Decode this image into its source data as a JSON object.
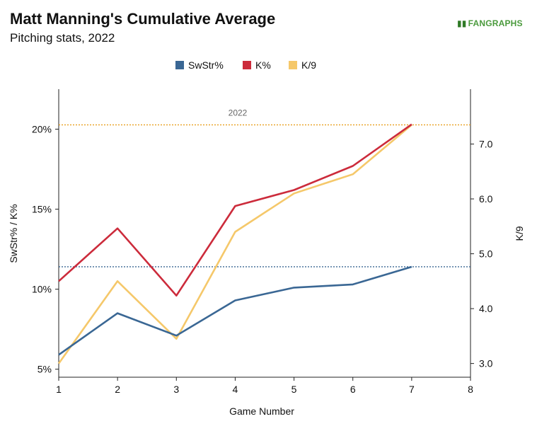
{
  "header": {
    "title": "Matt Manning's Cumulative Average",
    "subtitle": "Pitching stats, 2022",
    "logo": "FANGRAPHS"
  },
  "colors": {
    "swstr": "#3a6794",
    "kpct": "#cc2b3b",
    "k9": "#f5c86a",
    "ref_swstr": "#3a6794",
    "ref_k9": "#e8a020"
  },
  "chart_data": {
    "type": "line",
    "title": "Matt Manning's Cumulative Average",
    "subtitle": "Pitching stats, 2022",
    "xlabel": "Game Number",
    "ylabel_left": "SwStr% / K%",
    "ylabel_right": "K/9",
    "x": [
      1,
      2,
      3,
      4,
      5,
      6,
      7
    ],
    "xlim": [
      1,
      8
    ],
    "x_ticks": [
      "1",
      "2",
      "3",
      "4",
      "5",
      "6",
      "7",
      "8"
    ],
    "ylim_left": [
      4.5,
      22.5
    ],
    "ylim_right": [
      2.75,
      8.0
    ],
    "y_ticks_left": [
      {
        "value": 5,
        "label": "5%"
      },
      {
        "value": 10,
        "label": "10%"
      },
      {
        "value": 15,
        "label": "15%"
      },
      {
        "value": 20,
        "label": "20%"
      }
    ],
    "y_ticks_right": [
      {
        "value": 3.0,
        "label": "3.0"
      },
      {
        "value": 4.0,
        "label": "4.0"
      },
      {
        "value": 5.0,
        "label": "5.0"
      },
      {
        "value": 6.0,
        "label": "6.0"
      },
      {
        "value": 7.0,
        "label": "7.0"
      }
    ],
    "series": [
      {
        "name": "SwStr%",
        "axis": "left",
        "color": "#3a6794",
        "values": [
          5.9,
          8.5,
          7.1,
          9.3,
          10.1,
          10.3,
          11.4
        ]
      },
      {
        "name": "K%",
        "axis": "left",
        "color": "#cc2b3b",
        "values": [
          10.5,
          13.8,
          9.6,
          15.2,
          16.2,
          17.7,
          20.3
        ]
      },
      {
        "name": "K/9",
        "axis": "right",
        "color": "#f5c86a",
        "values": [
          3.0,
          4.5,
          3.45,
          5.4,
          6.1,
          6.45,
          7.35
        ]
      }
    ],
    "reference_lines": [
      {
        "series": "K/9",
        "axis": "right",
        "value": 7.35,
        "label": "2022",
        "color": "#e8a020"
      },
      {
        "series": "SwStr%",
        "axis": "left",
        "value": 11.4,
        "label": "",
        "color": "#3a6794"
      }
    ],
    "legend": {
      "placement": "top-center",
      "entries": [
        "SwStr%",
        "K%",
        "K/9"
      ]
    },
    "grid": false
  }
}
